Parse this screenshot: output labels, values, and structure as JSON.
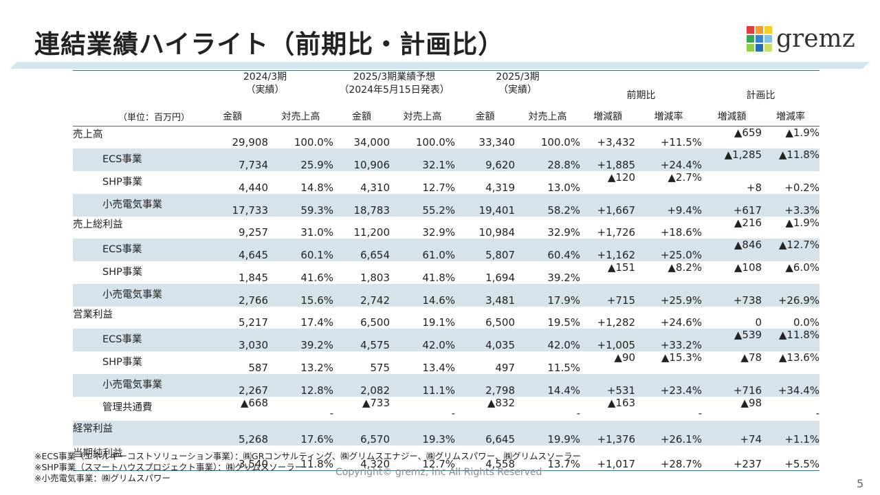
{
  "title": "連結業績ハイライト（前期比・計画比）",
  "logo": {
    "text": "gremz",
    "colors": [
      "#e23b3b",
      "#f29a2e",
      "#f5d020",
      "#34a853",
      "#2e86de",
      "#7fc4e8",
      "#8fd14f",
      "#1f6fb8",
      "#c8e06a"
    ]
  },
  "colors": {
    "band": "#d3e6ee",
    "header_line": "#3a6f8f",
    "shade": "#d6e3ea"
  },
  "header": {
    "unit": "（単位：百万円）",
    "groups": [
      {
        "line1": "2024/3期",
        "line2": "（実績）"
      },
      {
        "line1": "2025/3期業績予想",
        "line2": "（2024年5月15日発表）"
      },
      {
        "line1": "2025/3期",
        "line2": "（実績）"
      },
      {
        "line1": "前期比",
        "line2": ""
      },
      {
        "line1": "計画比",
        "line2": ""
      }
    ],
    "sub": [
      "金額",
      "対売上高",
      "金額",
      "対売上高",
      "金額",
      "対売上高",
      "増減額",
      "増減率",
      "増減額",
      "増減率"
    ]
  },
  "rows": [
    {
      "label": "売上高",
      "cells": [
        "29,908",
        "100.0%",
        "34,000",
        "100.0%",
        "33,340",
        "100.0%",
        "+3,432",
        "+11.5%",
        "▲659",
        "▲1.9%"
      ]
    },
    {
      "label": "ECS事業",
      "cells": [
        "7,734",
        "25.9%",
        "10,906",
        "32.1%",
        "9,620",
        "28.8%",
        "+1,885",
        "+24.4%",
        "▲1,285",
        "▲11.8%"
      ]
    },
    {
      "label": "SHP事業",
      "cells": [
        "4,440",
        "14.8%",
        "4,310",
        "12.7%",
        "4,319",
        "13.0%",
        "▲120",
        "▲2.7%",
        "+8",
        "+0.2%"
      ]
    },
    {
      "label": "小売電気事業",
      "cells": [
        "17,733",
        "59.3%",
        "18,783",
        "55.2%",
        "19,401",
        "58.2%",
        "+1,667",
        "+9.4%",
        "+617",
        "+3.3%"
      ]
    },
    {
      "label": "売上総利益",
      "cells": [
        "9,257",
        "31.0%",
        "11,200",
        "32.9%",
        "10,984",
        "32.9%",
        "+1,726",
        "+18.6%",
        "▲216",
        "▲1.9%"
      ]
    },
    {
      "label": "ECS事業",
      "cells": [
        "4,645",
        "60.1%",
        "6,654",
        "61.0%",
        "5,807",
        "60.4%",
        "+1,162",
        "+25.0%",
        "▲846",
        "▲12.7%"
      ]
    },
    {
      "label": "SHP事業",
      "cells": [
        "1,845",
        "41.6%",
        "1,803",
        "41.8%",
        "1,694",
        "39.2%",
        "▲151",
        "▲8.2%",
        "▲108",
        "▲6.0%"
      ]
    },
    {
      "label": "小売電気事業",
      "cells": [
        "2,766",
        "15.6%",
        "2,742",
        "14.6%",
        "3,481",
        "17.9%",
        "+715",
        "+25.9%",
        "+738",
        "+26.9%"
      ]
    },
    {
      "label": "営業利益",
      "cells": [
        "5,217",
        "17.4%",
        "6,500",
        "19.1%",
        "6,500",
        "19.5%",
        "+1,282",
        "+24.6%",
        "0",
        "0.0%"
      ]
    },
    {
      "label": "ECS事業",
      "cells": [
        "3,030",
        "39.2%",
        "4,575",
        "42.0%",
        "4,035",
        "42.0%",
        "+1,005",
        "+33.2%",
        "▲539",
        "▲11.8%"
      ]
    },
    {
      "label": "SHP事業",
      "cells": [
        "587",
        "13.2%",
        "575",
        "13.4%",
        "497",
        "11.5%",
        "▲90",
        "▲15.3%",
        "▲78",
        "▲13.6%"
      ]
    },
    {
      "label": "小売電気事業",
      "cells": [
        "2,267",
        "12.8%",
        "2,082",
        "11.1%",
        "2,798",
        "14.4%",
        "+531",
        "+23.4%",
        "+716",
        "+34.4%"
      ]
    },
    {
      "label": "管理共通費",
      "cells": [
        "▲668",
        "-",
        "▲733",
        "-",
        "▲832",
        "-",
        "▲163",
        "-",
        "▲98",
        "-"
      ]
    },
    {
      "label": "経常利益",
      "cells": [
        "5,268",
        "17.6%",
        "6,570",
        "19.3%",
        "6,645",
        "19.9%",
        "+1,376",
        "+26.1%",
        "+74",
        "+1.1%"
      ]
    },
    {
      "label": "当期純利益",
      "cells": [
        "3,540",
        "11.8%",
        "4,320",
        "12.7%",
        "4,558",
        "13.7%",
        "+1,017",
        "+28.7%",
        "+237",
        "+5.5%"
      ]
    }
  ],
  "footnotes": [
    "※ECS事業（エネルギーコストソリューション事業）：㈱GRコンサルティング、㈱グリムスエナジー、㈱グリムスパワー、㈱グリムスソーラー",
    "※SHP事業（スマートハウスプロジェクト事業）：㈱グリムスソーラー",
    "※小売電気事業：㈱グリムスパワー"
  ],
  "copyright": "Copyright© gremz, Inc All Rights Reserved",
  "page_number": "5"
}
